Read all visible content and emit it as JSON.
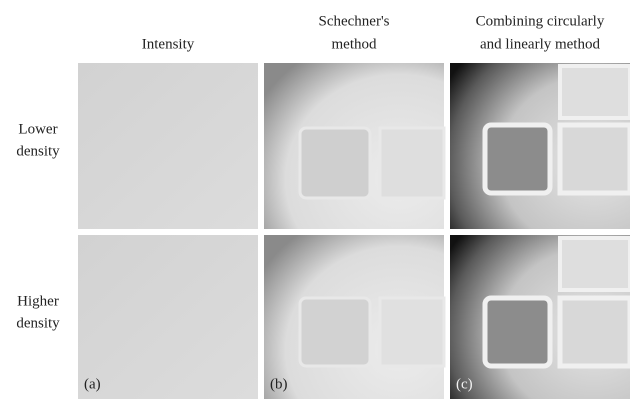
{
  "columns": [
    {
      "lines": [
        "Intensity"
      ]
    },
    {
      "lines": [
        "Schechner's",
        "method"
      ]
    },
    {
      "lines": [
        "Combining circularly",
        "and linearly method"
      ]
    }
  ],
  "rows": [
    {
      "lines": [
        "Lower",
        "density"
      ]
    },
    {
      "lines": [
        "Higher",
        "density"
      ]
    }
  ],
  "panels": [
    "(a)",
    "(b)",
    "(c)"
  ]
}
